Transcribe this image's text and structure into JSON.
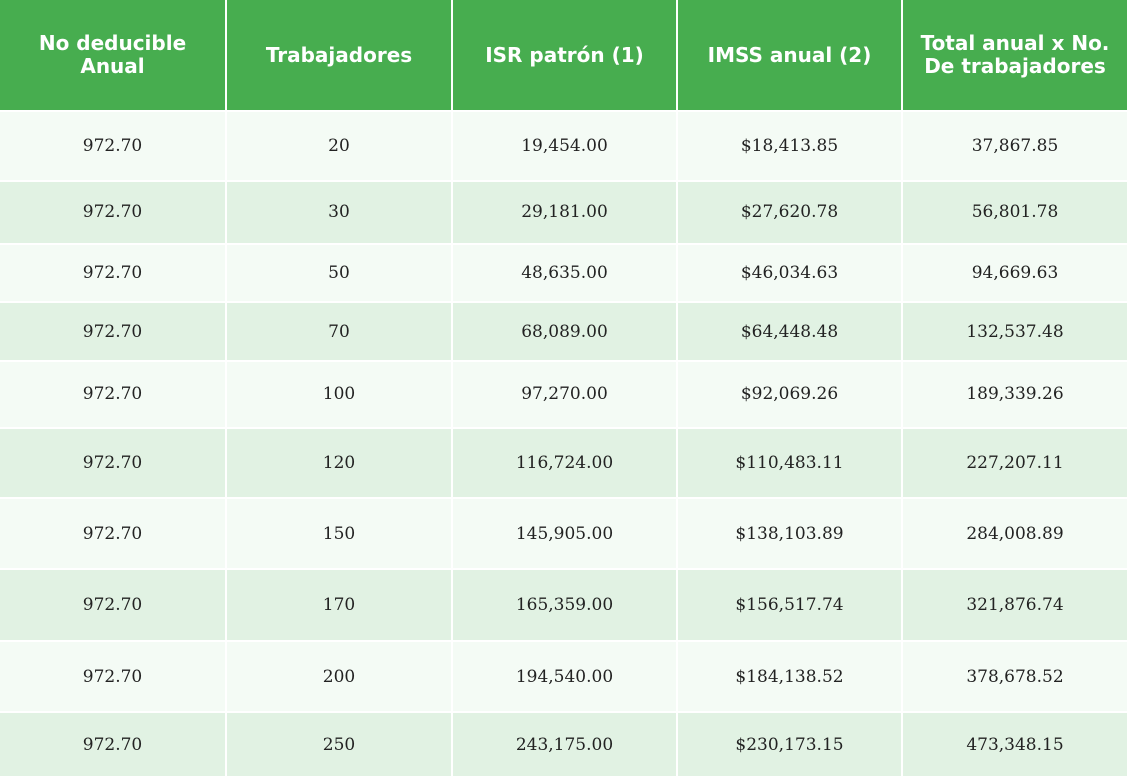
{
  "table": {
    "headers": [
      "No deducible Anual",
      "Trabajadores",
      "ISR patrón (1)",
      "IMSS anual (2)",
      "Total anual x No. De trabajadores"
    ],
    "rows": [
      [
        "972.70",
        "20",
        "19,454.00",
        "$18,413.85",
        "37,867.85"
      ],
      [
        "972.70",
        "30",
        "29,181.00",
        "$27,620.78",
        "56,801.78"
      ],
      [
        "972.70",
        "50",
        "48,635.00",
        "$46,034.63",
        "94,669.63"
      ],
      [
        "972.70",
        "70",
        "68,089.00",
        "$64,448.48",
        "132,537.48"
      ],
      [
        "972.70",
        "100",
        "97,270.00",
        "$92,069.26",
        "189,339.26"
      ],
      [
        "972.70",
        "120",
        "116,724.00",
        "$110,483.11",
        "227,207.11"
      ],
      [
        "972.70",
        "150",
        "145,905.00",
        "$138,103.89",
        "284,008.89"
      ],
      [
        "972.70",
        "170",
        "165,359.00",
        "$156,517.74",
        "321,876.74"
      ],
      [
        "972.70",
        "200",
        "194,540.00",
        "$184,138.52",
        "378,678.52"
      ],
      [
        "972.70",
        "250",
        "243,175.00",
        "$230,173.15",
        "473,348.15"
      ]
    ],
    "colors": {
      "header_bg": "#47ad4f",
      "header_text": "#ffffff",
      "row_light": "#f4fbf5",
      "row_dark": "#e1f2e3"
    }
  }
}
